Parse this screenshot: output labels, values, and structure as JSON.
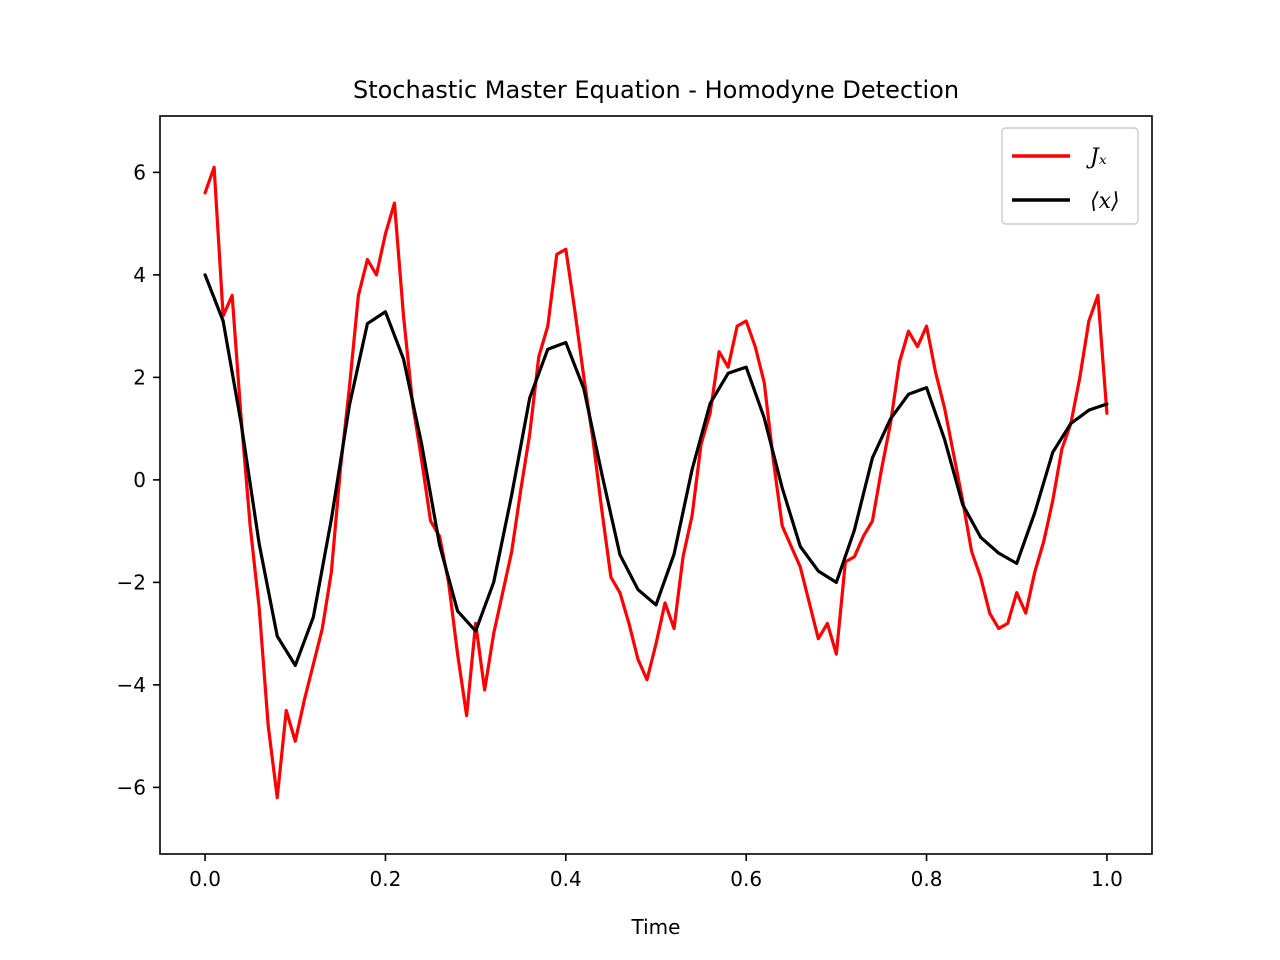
{
  "chart_data": {
    "type": "line",
    "title": "Stochastic Master Equation - Homodyne Detection",
    "xlabel": "Time",
    "ylabel": "",
    "xlim": [
      -0.05,
      1.05
    ],
    "ylim": [
      -7.3,
      7.1
    ],
    "xticks": [
      0.0,
      0.2,
      0.4,
      0.6,
      0.8,
      1.0
    ],
    "xtick_labels": [
      "0.0",
      "0.2",
      "0.4",
      "0.6",
      "0.8",
      "1.0"
    ],
    "yticks": [
      6,
      4,
      2,
      0,
      -2,
      -4,
      -6
    ],
    "ytick_labels": [
      "6",
      "4",
      "2",
      "0",
      "−2",
      "−4",
      "−6"
    ],
    "grid": false,
    "legend_position": "top-right",
    "series": [
      {
        "name": "Jₓ",
        "color": "#ff0000",
        "x": [
          0.0,
          0.01,
          0.02,
          0.03,
          0.04,
          0.05,
          0.06,
          0.07,
          0.08,
          0.09,
          0.1,
          0.11,
          0.12,
          0.13,
          0.14,
          0.15,
          0.16,
          0.17,
          0.18,
          0.19,
          0.2,
          0.21,
          0.22,
          0.23,
          0.24,
          0.25,
          0.26,
          0.27,
          0.28,
          0.29,
          0.3,
          0.31,
          0.32,
          0.33,
          0.34,
          0.35,
          0.36,
          0.37,
          0.38,
          0.39,
          0.4,
          0.41,
          0.42,
          0.43,
          0.44,
          0.45,
          0.46,
          0.47,
          0.48,
          0.49,
          0.5,
          0.51,
          0.52,
          0.53,
          0.54,
          0.55,
          0.56,
          0.57,
          0.58,
          0.59,
          0.6,
          0.61,
          0.62,
          0.63,
          0.64,
          0.65,
          0.66,
          0.67,
          0.68,
          0.69,
          0.7,
          0.71,
          0.72,
          0.73,
          0.74,
          0.75,
          0.76,
          0.77,
          0.78,
          0.79,
          0.8,
          0.81,
          0.82,
          0.83,
          0.84,
          0.85,
          0.86,
          0.87,
          0.88,
          0.89,
          0.9,
          0.91,
          0.92,
          0.93,
          0.94,
          0.95,
          0.96,
          0.97,
          0.98,
          0.99,
          1.0
        ],
        "y": [
          5.6,
          6.1,
          3.2,
          3.6,
          1.2,
          -0.9,
          -2.5,
          -4.8,
          -6.2,
          -4.5,
          -5.1,
          -4.3,
          -3.6,
          -2.9,
          -1.8,
          0.2,
          1.8,
          3.6,
          4.3,
          4.0,
          4.8,
          5.4,
          3.2,
          1.5,
          0.4,
          -0.8,
          -1.1,
          -2.0,
          -3.4,
          -4.6,
          -2.8,
          -4.1,
          -3.0,
          -2.2,
          -1.4,
          -0.2,
          0.9,
          2.4,
          3.0,
          4.4,
          4.5,
          3.3,
          2.0,
          0.8,
          -0.6,
          -1.9,
          -2.2,
          -2.8,
          -3.5,
          -3.9,
          -3.2,
          -2.4,
          -2.9,
          -1.5,
          -0.7,
          0.7,
          1.3,
          2.5,
          2.2,
          3.0,
          3.1,
          2.6,
          1.9,
          0.4,
          -0.9,
          -1.3,
          -1.7,
          -2.4,
          -3.1,
          -2.8,
          -3.4,
          -1.6,
          -1.5,
          -1.1,
          -0.8,
          0.2,
          1.1,
          2.3,
          2.9,
          2.6,
          3.0,
          2.1,
          1.4,
          0.5,
          -0.4,
          -1.4,
          -1.9,
          -2.6,
          -2.9,
          -2.8,
          -2.2,
          -2.6,
          -1.8,
          -1.2,
          -0.4,
          0.6,
          1.1,
          2.0,
          3.1,
          3.6,
          1.3
        ]
      },
      {
        "name": "⟨x⟩",
        "color": "#000000",
        "x": [
          0.0,
          0.02,
          0.04,
          0.06,
          0.08,
          0.1,
          0.12,
          0.14,
          0.16,
          0.18,
          0.2,
          0.22,
          0.24,
          0.26,
          0.28,
          0.3,
          0.32,
          0.34,
          0.36,
          0.38,
          0.4,
          0.42,
          0.44,
          0.46,
          0.48,
          0.5,
          0.52,
          0.54,
          0.56,
          0.58,
          0.6,
          0.62,
          0.64,
          0.66,
          0.68,
          0.7,
          0.72,
          0.74,
          0.76,
          0.78,
          0.8,
          0.82,
          0.84,
          0.86,
          0.88,
          0.9,
          0.92,
          0.94,
          0.96,
          0.98,
          1.0
        ],
        "y": [
          4.0,
          3.1,
          1.1,
          -1.25,
          -3.05,
          -3.62,
          -2.68,
          -0.77,
          1.45,
          3.05,
          3.28,
          2.36,
          0.71,
          -1.27,
          -2.56,
          -2.95,
          -2.0,
          -0.29,
          1.6,
          2.55,
          2.68,
          1.78,
          0.11,
          -1.46,
          -2.14,
          -2.44,
          -1.45,
          0.2,
          1.49,
          2.08,
          2.2,
          1.21,
          -0.16,
          -1.3,
          -1.78,
          -2.0,
          -0.98,
          0.43,
          1.19,
          1.67,
          1.8,
          0.79,
          -0.48,
          -1.12,
          -1.43,
          -1.63,
          -0.64,
          0.54,
          1.1,
          1.36,
          1.48
        ]
      }
    ]
  }
}
